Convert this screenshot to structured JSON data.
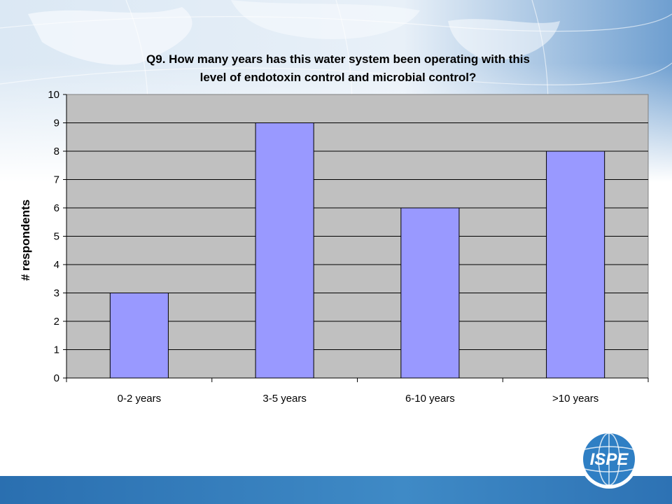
{
  "slide": {
    "logo_text": "ISPE",
    "colors": {
      "footer": "#3a82c2",
      "logo": "#2f7fc4",
      "plot_bg": "#c0c0c0",
      "bar_fill": "#9999ff",
      "bar_stroke": "#000000"
    }
  },
  "chart_data": {
    "type": "bar",
    "title_lines": [
      "Q9. How many years has this water system been operating with this",
      "level of endotoxin control and microbial control?"
    ],
    "xlabel": "",
    "ylabel": "# respondents",
    "categories": [
      "0-2 years",
      "3-5 years",
      "6-10 years",
      ">10 years"
    ],
    "values": [
      3,
      9,
      6,
      8
    ],
    "ylim": [
      0,
      10
    ],
    "yticks": [
      "0",
      "1",
      "2",
      "3",
      "4",
      "5",
      "6",
      "7",
      "8",
      "9",
      "10"
    ],
    "grid": true,
    "legend": "none"
  }
}
